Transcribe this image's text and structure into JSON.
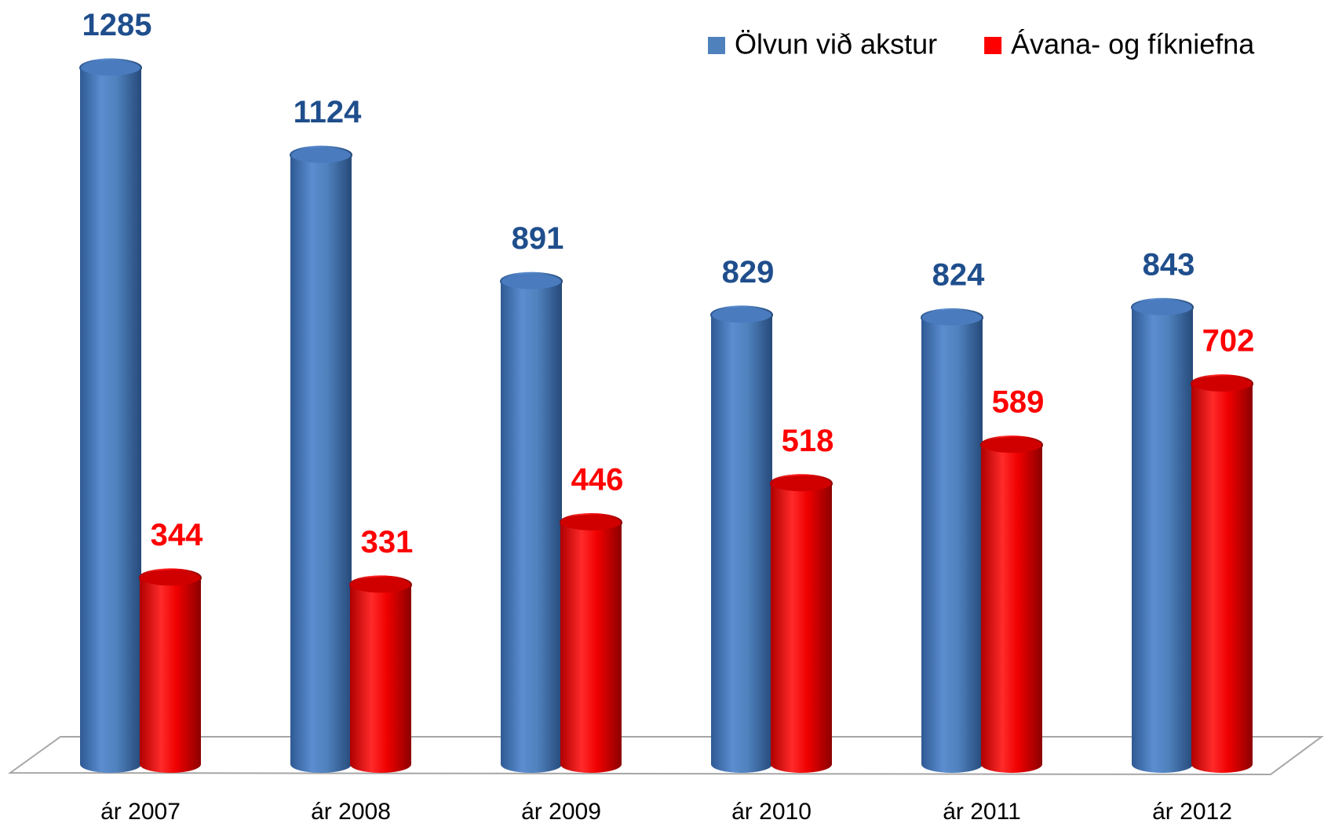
{
  "chart_data": {
    "type": "bar",
    "categories": [
      "ár 2007",
      "ár 2008",
      "ár 2009",
      "ár 2010",
      "ár 2011",
      "ár 2012"
    ],
    "series": [
      {
        "name": "Ölvun við akstur",
        "color": "#4f81bd",
        "label_color": "#1f4e8c",
        "values": [
          1285,
          1124,
          891,
          829,
          824,
          843
        ]
      },
      {
        "name": "Ávana- og fíkniefna",
        "color": "#ff0000",
        "label_color": "#ff0000",
        "values": [
          344,
          331,
          446,
          518,
          589,
          702
        ]
      }
    ],
    "ylim": [
      0,
      1400
    ],
    "legend": "top-right"
  }
}
